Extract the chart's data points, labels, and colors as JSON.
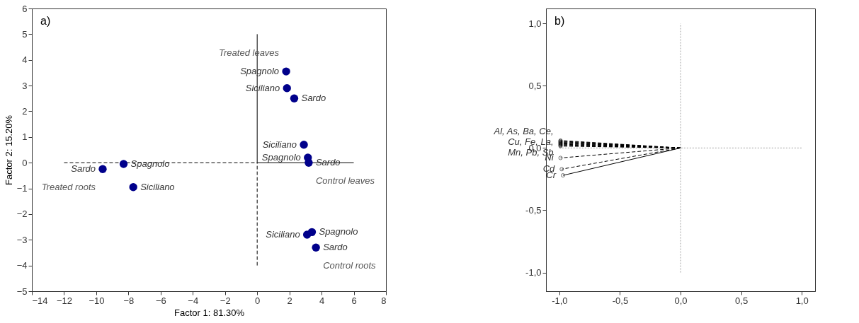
{
  "chart_data": [
    {
      "type": "scatter",
      "title": "a)",
      "xlabel": "Factor 1: 81.30%",
      "ylabel": "Factor 2: 15.20%",
      "xlim": [
        -14,
        8
      ],
      "ylim": [
        -5,
        6
      ],
      "xticks": [
        -14,
        -12,
        -10,
        -8,
        -6,
        -4,
        -2,
        0,
        2,
        4,
        6,
        8
      ],
      "yticks": [
        -5,
        -4,
        -3,
        -2,
        -1,
        0,
        1,
        2,
        3,
        4,
        5,
        6
      ],
      "series": [
        {
          "type": "line",
          "color": "#000000",
          "line_style": "dashed",
          "x": [
            -12,
            0
          ],
          "values": [
            0,
            0
          ]
        },
        {
          "type": "line",
          "color": "#000000",
          "line_style": "solid",
          "x": [
            0,
            6
          ],
          "values": [
            0,
            0
          ]
        },
        {
          "type": "line",
          "color": "#000000",
          "line_style": "solid",
          "x": [
            0,
            0
          ],
          "values": [
            0,
            5
          ]
        },
        {
          "type": "line",
          "color": "#000000",
          "line_style": "dashed",
          "x": [
            0,
            0
          ],
          "values": [
            -4,
            0
          ]
        },
        {
          "color": "#00008b",
          "marker": "circle",
          "x": [
            1.8,
            1.85,
            2.3,
            2.9,
            3.15,
            3.2,
            -9.6,
            -8.3,
            -7.7,
            3.1,
            3.4,
            3.65
          ],
          "values": [
            3.55,
            2.9,
            2.5,
            0.7,
            0.2,
            0.0,
            -0.25,
            -0.05,
            -0.95,
            -2.8,
            -2.7,
            -3.3
          ]
        }
      ],
      "annotations": [
        {
          "text": "Spagnolo",
          "x": 1.8,
          "y": 3.55
        },
        {
          "text": "Siciliano",
          "x": 1.85,
          "y": 2.9
        },
        {
          "text": "Sardo",
          "x": 2.3,
          "y": 2.5
        },
        {
          "text": "Siciliano",
          "x": 2.9,
          "y": 0.7
        },
        {
          "text": "Spagnolo",
          "x": 3.15,
          "y": 0.2
        },
        {
          "text": "Sardo",
          "x": 3.2,
          "y": 0.0
        },
        {
          "text": "Sardo",
          "x": -9.6,
          "y": -0.25
        },
        {
          "text": "Spagnolo",
          "x": -8.3,
          "y": -0.05
        },
        {
          "text": "Siciliano",
          "x": -7.7,
          "y": -0.95
        },
        {
          "text": "Siciliano",
          "x": 3.1,
          "y": -2.8
        },
        {
          "text": "Spagnolo",
          "x": 3.4,
          "y": -2.7
        },
        {
          "text": "Sardo",
          "x": 3.65,
          "y": -3.3
        },
        {
          "text": "Treated leaves",
          "x": 1.8,
          "y": 3.55
        },
        {
          "text": "Control leaves",
          "x": 3.2,
          "y": 0.0
        },
        {
          "text": "Treated roots",
          "x": -9.6,
          "y": -0.25
        },
        {
          "text": "Control roots",
          "x": 3.65,
          "y": -3.3
        }
      ]
    },
    {
      "type": "line",
      "title": "b)",
      "xlim": [
        -1.11,
        1.11
      ],
      "ylim": [
        -1.15,
        1.12
      ],
      "xticks": [
        {
          "value": -1,
          "label": "-1,0"
        },
        {
          "value": -0.5,
          "label": "-0,5"
        },
        {
          "value": 0,
          "label": "0,0"
        },
        {
          "value": 0.5,
          "label": "0,5"
        },
        {
          "value": 1,
          "label": "1,0"
        }
      ],
      "yticks": [
        {
          "value": -1,
          "label": "-1,0"
        },
        {
          "value": -0.5,
          "label": "-0,5"
        },
        {
          "value": 0,
          "label": "0,0"
        },
        {
          "value": 0.5,
          "label": "0,5"
        },
        {
          "value": 1,
          "label": "1,0"
        }
      ],
      "series": [
        {
          "color": "#a0a0a0",
          "line_style": "dotted",
          "x": [
            0,
            0
          ],
          "values": [
            -1,
            1
          ]
        },
        {
          "color": "#a0a0a0",
          "line_style": "dotted",
          "x": [
            -1,
            1
          ],
          "values": [
            0,
            0
          ]
        },
        {
          "color": "#000000",
          "line_style": "dashed",
          "marker": "circle",
          "x": [
            0,
            -0.99
          ],
          "values": [
            0,
            0.06
          ]
        },
        {
          "color": "#000000",
          "line_style": "dashed",
          "marker": "circle",
          "x": [
            0,
            -0.99
          ],
          "values": [
            0,
            0.055
          ]
        },
        {
          "color": "#000000",
          "line_style": "dashed",
          "marker": "circle",
          "x": [
            0,
            -0.99
          ],
          "values": [
            0,
            0.05
          ]
        },
        {
          "color": "#000000",
          "line_style": "dashed",
          "marker": "circle",
          "x": [
            0,
            -0.99
          ],
          "values": [
            0,
            0.045
          ]
        },
        {
          "color": "#000000",
          "line_style": "dashed",
          "marker": "circle",
          "x": [
            0,
            -0.99
          ],
          "values": [
            0,
            0.04
          ]
        },
        {
          "color": "#000000",
          "line_style": "dashed",
          "marker": "circle",
          "x": [
            0,
            -0.99
          ],
          "values": [
            0,
            0.035
          ]
        },
        {
          "color": "#000000",
          "line_style": "dashed",
          "marker": "circle",
          "x": [
            0,
            -0.99
          ],
          "values": [
            0,
            0.03
          ]
        },
        {
          "color": "#000000",
          "line_style": "dashed",
          "marker": "circle",
          "x": [
            0,
            -0.99
          ],
          "values": [
            0,
            0.025
          ]
        },
        {
          "color": "#000000",
          "line_style": "dashed",
          "marker": "circle",
          "x": [
            0,
            -0.99
          ],
          "values": [
            0,
            0.02
          ]
        },
        {
          "color": "#000000",
          "line_style": "dashed",
          "marker": "circle",
          "x": [
            0,
            -0.99
          ],
          "values": [
            0,
            0.015
          ]
        },
        {
          "color": "#000000",
          "line_style": "dashed",
          "marker": "circle",
          "x": [
            0,
            -0.99
          ],
          "values": [
            0,
            -0.08
          ]
        },
        {
          "color": "#000000",
          "line_style": "dashed",
          "marker": "circle",
          "x": [
            0,
            -0.98
          ],
          "values": [
            0,
            -0.17
          ]
        },
        {
          "color": "#000000",
          "line_style": "solid",
          "marker": "circle",
          "x": [
            0,
            -0.97
          ],
          "values": [
            0,
            -0.22
          ]
        }
      ],
      "annotations": [
        {
          "text": "Al, As, Ba, Ce,\nCu, Fe, La,\nMn, Pb, Sb",
          "x": -0.99,
          "y": 0.06
        },
        {
          "text": "Ni",
          "x": -0.99,
          "y": -0.08
        },
        {
          "text": "Cd",
          "x": -0.98,
          "y": -0.17
        },
        {
          "text": "Cr",
          "x": -0.97,
          "y": -0.22
        }
      ]
    }
  ]
}
